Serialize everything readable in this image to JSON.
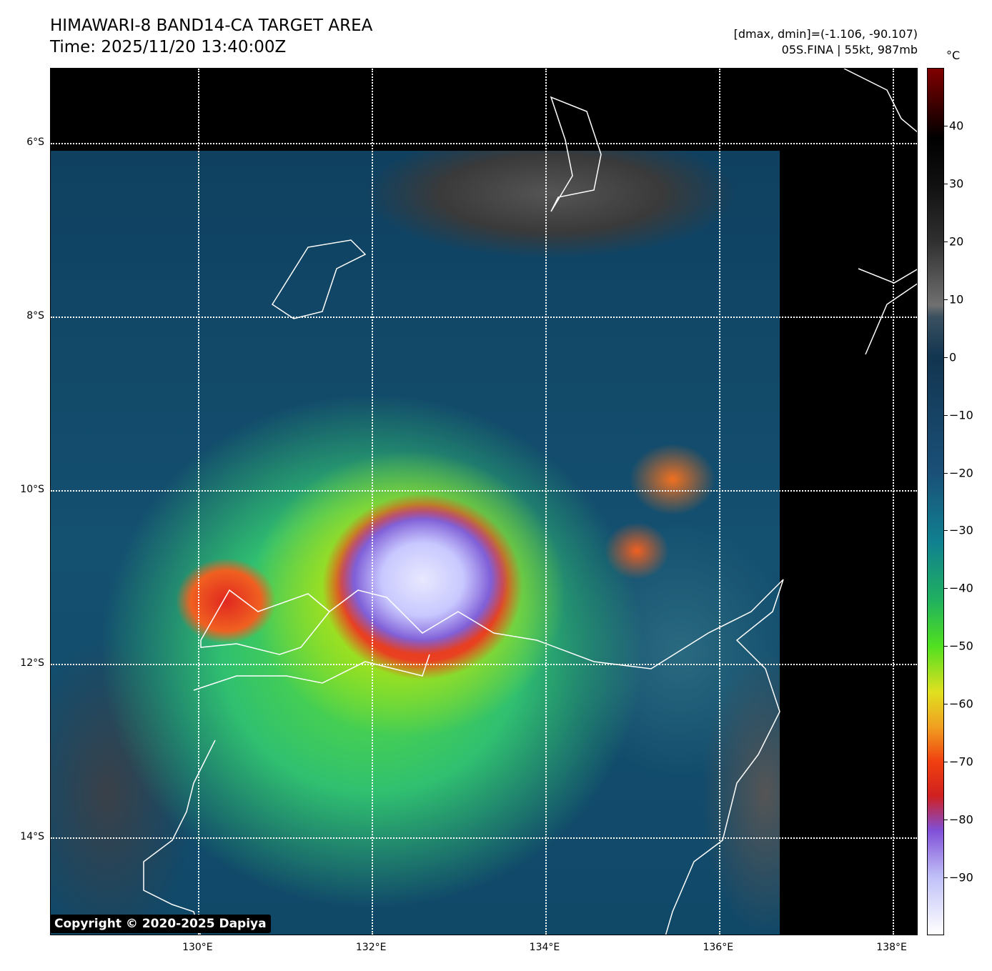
{
  "header": {
    "title_line1": "HIMAWARI-8 BAND14-CA TARGET AREA",
    "title_line2": "Time: 2025/11/20 13:40:00Z",
    "range_info": "[dmax, dmin]=(-1.106, -90.107)",
    "storm_info": "05S.FINA | 55kt, 987mb"
  },
  "map": {
    "lon_range": [
      128.3,
      138.3
    ],
    "lat_range": [
      -5.14,
      -15.14
    ],
    "lon_ticks": [
      {
        "value": 130,
        "label": "130°E"
      },
      {
        "value": 132,
        "label": "132°E"
      },
      {
        "value": 134,
        "label": "134°E"
      },
      {
        "value": 136,
        "label": "136°E"
      },
      {
        "value": 138,
        "label": "138°E"
      }
    ],
    "lat_ticks": [
      {
        "value": -6,
        "label": "6°S"
      },
      {
        "value": -8,
        "label": "8°S"
      },
      {
        "value": -10,
        "label": "10°S"
      },
      {
        "value": -12,
        "label": "12°S"
      },
      {
        "value": -14,
        "label": "14°S"
      }
    ],
    "copyright": "Copyright © 2020-2025 Dapiya"
  },
  "colorbar": {
    "unit": "°C",
    "range": [
      -100,
      50
    ],
    "ticks": [
      {
        "value": 40,
        "label": "40"
      },
      {
        "value": 30,
        "label": "30"
      },
      {
        "value": 20,
        "label": "20"
      },
      {
        "value": 10,
        "label": "10"
      },
      {
        "value": 0,
        "label": "0"
      },
      {
        "value": -10,
        "label": "−10"
      },
      {
        "value": -20,
        "label": "−20"
      },
      {
        "value": -30,
        "label": "−30"
      },
      {
        "value": -40,
        "label": "−40"
      },
      {
        "value": -50,
        "label": "−50"
      },
      {
        "value": -60,
        "label": "−60"
      },
      {
        "value": -70,
        "label": "−70"
      },
      {
        "value": -80,
        "label": "−80"
      },
      {
        "value": -90,
        "label": "−90"
      }
    ],
    "stops": [
      {
        "value": -100,
        "color": "#ffffff"
      },
      {
        "value": -90,
        "color": "#c0c0f8"
      },
      {
        "value": -82,
        "color": "#8050d8"
      },
      {
        "value": -76,
        "color": "#d02020"
      },
      {
        "value": -70,
        "color": "#f04010"
      },
      {
        "value": -64,
        "color": "#f0a020"
      },
      {
        "value": -58,
        "color": "#e0e020"
      },
      {
        "value": -50,
        "color": "#50e020"
      },
      {
        "value": -42,
        "color": "#20b060"
      },
      {
        "value": -32,
        "color": "#108090"
      },
      {
        "value": -20,
        "color": "#1a5078"
      },
      {
        "value": 0,
        "color": "#123550"
      },
      {
        "value": 7,
        "color": "#3a5060"
      },
      {
        "value": 9,
        "color": "#707070"
      },
      {
        "value": 20,
        "color": "#303030"
      },
      {
        "value": 30,
        "color": "#101010"
      },
      {
        "value": 38,
        "color": "#000000"
      },
      {
        "value": 50,
        "color": "#800000"
      }
    ]
  }
}
